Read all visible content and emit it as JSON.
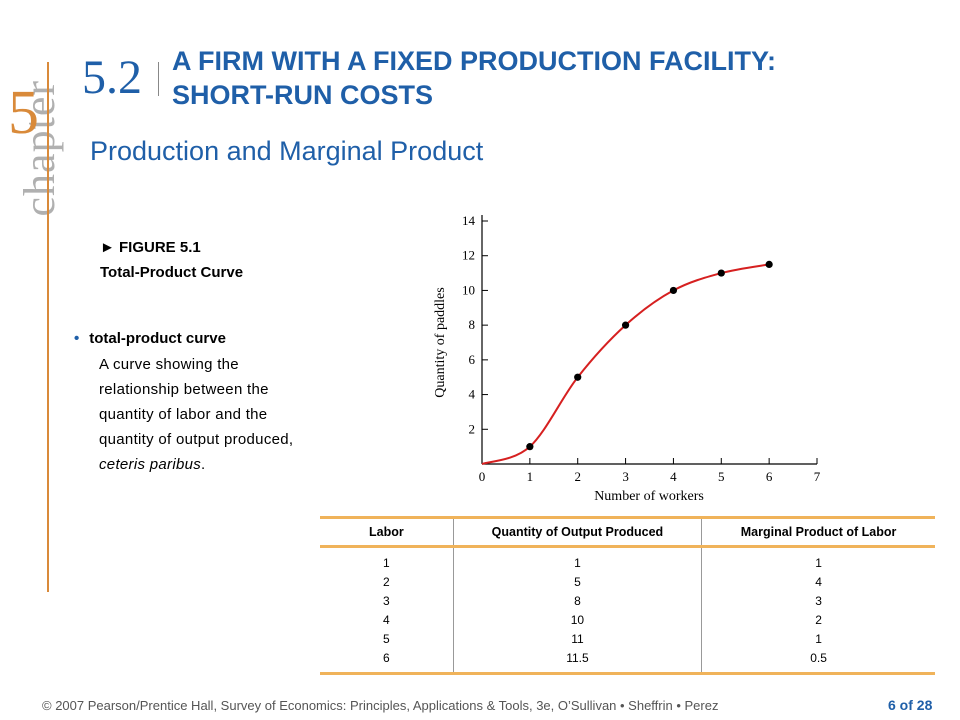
{
  "chapter": {
    "word": "chapter",
    "number": "5"
  },
  "section": {
    "number": "5.2",
    "title": "A FIRM WITH A FIXED PRODUCTION FACILITY: SHORT-RUN COSTS"
  },
  "subtitle": "Production and Marginal Product",
  "figure": {
    "label": "► FIGURE 5.1",
    "caption": "Total-Product Curve"
  },
  "definition": {
    "bullet": "•",
    "term": "total-product curve",
    "text_lines": [
      "A curve showing the",
      "relationship between the",
      "quantity of labor and the",
      "quantity of output produced,"
    ],
    "text_italic": "ceteris paribus",
    "text_end": "."
  },
  "chart_data": {
    "type": "line",
    "xlabel": "Number of workers",
    "ylabel": "Quantity of paddles",
    "xlim": [
      0,
      7
    ],
    "ylim": [
      0,
      14
    ],
    "x_ticks": [
      0,
      1,
      2,
      3,
      4,
      5,
      6,
      7
    ],
    "y_ticks": [
      2,
      4,
      6,
      8,
      10,
      12,
      14
    ],
    "grid": false,
    "curve_color": "#d62020",
    "points": [
      {
        "x": 1,
        "y": 1
      },
      {
        "x": 2,
        "y": 5
      },
      {
        "x": 3,
        "y": 8
      },
      {
        "x": 4,
        "y": 10
      },
      {
        "x": 5,
        "y": 11
      },
      {
        "x": 6,
        "y": 11.5
      }
    ]
  },
  "table": {
    "headers": [
      "Labor",
      "Quantity of Output Produced",
      "Marginal Product of Labor"
    ],
    "rows": [
      [
        "1",
        "1",
        "1"
      ],
      [
        "2",
        "5",
        "4"
      ],
      [
        "3",
        "8",
        "3"
      ],
      [
        "4",
        "10",
        "2"
      ],
      [
        "5",
        "11",
        "1"
      ],
      [
        "6",
        "11.5",
        "0.5"
      ]
    ]
  },
  "footer": "© 2007 Pearson/Prentice Hall, Survey of Economics: Principles, Applications & Tools, 3e, O’Sullivan • Sheffrin • Perez",
  "page": "6 of 28",
  "colors": {
    "title_blue": "#1f5fa8",
    "accent_orange": "#d98a3a",
    "table_rule": "#f0b35a"
  }
}
